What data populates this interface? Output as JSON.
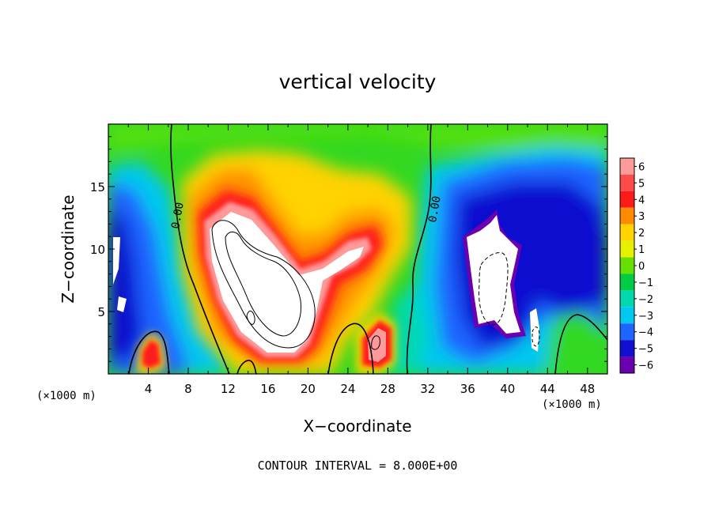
{
  "chart_data": {
    "type": "heatmap",
    "title": "vertical velocity",
    "xlabel": "X−coordinate",
    "ylabel": "Z−coordinate",
    "x_unit": "(×1000 m)",
    "y_unit": "(×1000 m)",
    "xlim": [
      0,
      50
    ],
    "ylim": [
      0,
      20
    ],
    "x_ticks": [
      "4",
      "8",
      "12",
      "16",
      "20",
      "24",
      "28",
      "32",
      "36",
      "40",
      "44",
      "48"
    ],
    "y_ticks": [
      "5",
      "10",
      "15"
    ],
    "colorbar": {
      "levels": [
        "6",
        "5",
        "4",
        "3",
        "2",
        "1",
        "0",
        "−1",
        "−2",
        "−3",
        "−4",
        "−5",
        "−6"
      ],
      "colors": [
        "#ff9a9a",
        "#ff4a4a",
        "#ff1a1a",
        "#ff8c00",
        "#ffd200",
        "#e6f000",
        "#66e000",
        "#00cc44",
        "#00d8b0",
        "#00c8f0",
        "#1e64ff",
        "#1010d0",
        "#6a00b0"
      ]
    },
    "contour_labels": [
      "0.00",
      "0.00"
    ],
    "contour_interval_text": "CONTOUR INTERVAL = 8.000E+00"
  }
}
